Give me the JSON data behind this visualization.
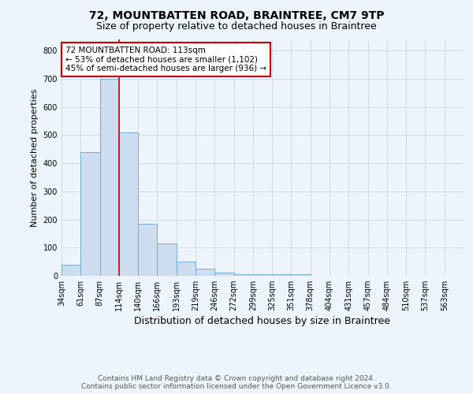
{
  "title": "72, MOUNTBATTEN ROAD, BRAINTREE, CM7 9TP",
  "subtitle": "Size of property relative to detached houses in Braintree",
  "xlabel": "Distribution of detached houses by size in Braintree",
  "ylabel": "Number of detached properties",
  "categories": [
    "34sqm",
    "61sqm",
    "87sqm",
    "114sqm",
    "140sqm",
    "166sqm",
    "193sqm",
    "219sqm",
    "246sqm",
    "272sqm",
    "299sqm",
    "325sqm",
    "351sqm",
    "378sqm",
    "404sqm",
    "431sqm",
    "457sqm",
    "484sqm",
    "510sqm",
    "537sqm",
    "563sqm"
  ],
  "values": [
    40,
    440,
    700,
    510,
    185,
    115,
    50,
    25,
    10,
    5,
    5,
    5,
    5,
    0,
    0,
    0,
    0,
    0,
    0,
    0,
    0
  ],
  "bar_color": "#ccddf0",
  "bar_edge_color": "#7aaace",
  "red_line_x": 3.0,
  "annotation_text": "72 MOUNTBATTEN ROAD: 113sqm\n← 53% of detached houses are smaller (1,102)\n45% of semi-detached houses are larger (936) →",
  "annotation_box_color": "white",
  "annotation_box_edge_color": "#cc0000",
  "ylim": [
    0,
    840
  ],
  "yticks": [
    0,
    100,
    200,
    300,
    400,
    500,
    600,
    700,
    800
  ],
  "footer1": "Contains HM Land Registry data © Crown copyright and database right 2024.",
  "footer2": "Contains public sector information licensed under the Open Government Licence v3.0.",
  "title_fontsize": 10,
  "subtitle_fontsize": 9,
  "xlabel_fontsize": 9,
  "ylabel_fontsize": 8,
  "tick_fontsize": 7,
  "footer_fontsize": 6.5,
  "annotation_fontsize": 7.5,
  "grid_color": "#d0dde8",
  "background_color": "#eef4fb"
}
